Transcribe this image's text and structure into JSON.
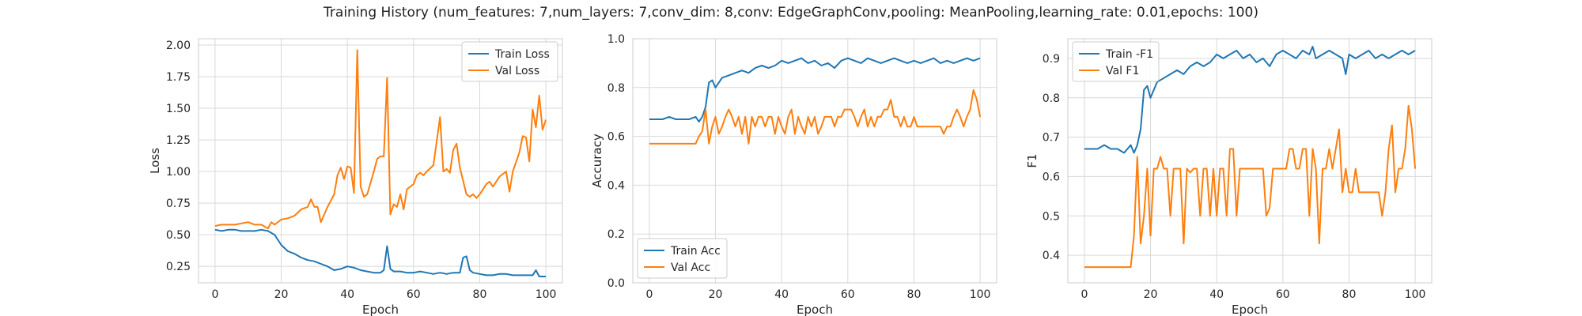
{
  "figure": {
    "title": "Training History (num_features: 7,num_layers: 7,conv_dim: 8,conv: EdgeGraphConv,pooling: MeanPooling,learning_rate: 0.01,epochs: 100)"
  },
  "colors": {
    "series1": "#1f77b4",
    "series2": "#ff7f0e",
    "grid": "#d9d9d9",
    "frame": "#cccccc"
  },
  "chart_data": [
    {
      "type": "line",
      "xlabel": "Epoch",
      "ylabel": "Loss",
      "xlim": [
        -5,
        105
      ],
      "ylim": [
        0.12,
        2.05
      ],
      "xticks": [
        0,
        20,
        40,
        60,
        80,
        100
      ],
      "yticks": [
        0.25,
        0.5,
        0.75,
        1.0,
        1.25,
        1.5,
        1.75,
        2.0
      ],
      "ytick_labels": [
        "0.25",
        "0.50",
        "0.75",
        "1.00",
        "1.25",
        "1.50",
        "1.75",
        "2.00"
      ],
      "grid": true,
      "legend_position": "top-right",
      "series": [
        {
          "name": "Train Loss",
          "color": "#1f77b4",
          "x": [
            0,
            2,
            4,
            6,
            8,
            10,
            12,
            14,
            16,
            18,
            20,
            22,
            24,
            26,
            28,
            30,
            32,
            34,
            36,
            38,
            40,
            42,
            44,
            46,
            48,
            50,
            51,
            52,
            53,
            54,
            56,
            58,
            60,
            62,
            64,
            66,
            68,
            70,
            72,
            74,
            75,
            76,
            77,
            78,
            80,
            82,
            84,
            86,
            88,
            90,
            92,
            94,
            96,
            97,
            98,
            100
          ],
          "y": [
            0.54,
            0.53,
            0.54,
            0.54,
            0.53,
            0.53,
            0.53,
            0.54,
            0.53,
            0.5,
            0.42,
            0.37,
            0.35,
            0.32,
            0.3,
            0.29,
            0.27,
            0.25,
            0.22,
            0.23,
            0.25,
            0.24,
            0.22,
            0.21,
            0.2,
            0.2,
            0.22,
            0.41,
            0.23,
            0.21,
            0.21,
            0.2,
            0.2,
            0.21,
            0.2,
            0.19,
            0.2,
            0.19,
            0.2,
            0.2,
            0.32,
            0.33,
            0.22,
            0.2,
            0.19,
            0.18,
            0.18,
            0.19,
            0.19,
            0.18,
            0.18,
            0.18,
            0.18,
            0.22,
            0.17,
            0.17
          ]
        },
        {
          "name": "Val Loss",
          "color": "#ff7f0e",
          "x": [
            0,
            2,
            4,
            6,
            8,
            10,
            12,
            14,
            16,
            17,
            18,
            20,
            22,
            24,
            26,
            28,
            29,
            30,
            31,
            32,
            34,
            36,
            37,
            38,
            39,
            40,
            41,
            42,
            43,
            44,
            45,
            46,
            48,
            49,
            50,
            51,
            52,
            53,
            54,
            55,
            56,
            57,
            58,
            60,
            61,
            62,
            63,
            64,
            66,
            68,
            69,
            70,
            71,
            72,
            73,
            74,
            76,
            77,
            78,
            79,
            80,
            82,
            83,
            84,
            86,
            88,
            89,
            90,
            92,
            93,
            94,
            95,
            96,
            97,
            98,
            99,
            100
          ],
          "y": [
            0.57,
            0.58,
            0.58,
            0.58,
            0.59,
            0.6,
            0.58,
            0.58,
            0.55,
            0.6,
            0.58,
            0.62,
            0.63,
            0.65,
            0.7,
            0.72,
            0.78,
            0.72,
            0.72,
            0.6,
            0.72,
            0.82,
            0.97,
            1.03,
            0.94,
            1.04,
            1.03,
            0.83,
            1.96,
            0.88,
            0.8,
            0.82,
            1.0,
            1.1,
            1.12,
            1.12,
            1.74,
            0.66,
            0.74,
            0.72,
            0.82,
            0.7,
            0.86,
            0.9,
            0.97,
            0.99,
            0.97,
            1.0,
            1.05,
            1.43,
            1.0,
            1.02,
            0.99,
            1.17,
            1.22,
            1.03,
            0.82,
            0.8,
            0.82,
            0.79,
            0.82,
            0.9,
            0.92,
            0.88,
            0.96,
            1.0,
            0.84,
            1.0,
            1.15,
            1.28,
            1.27,
            1.08,
            1.49,
            1.35,
            1.6,
            1.33,
            1.41
          ]
        }
      ]
    },
    {
      "type": "line",
      "xlabel": "Epoch",
      "ylabel": "Accuracy",
      "xlim": [
        -5,
        105
      ],
      "ylim": [
        0.0,
        1.0
      ],
      "xticks": [
        0,
        20,
        40,
        60,
        80,
        100
      ],
      "yticks": [
        0.0,
        0.2,
        0.4,
        0.6,
        0.8,
        1.0
      ],
      "ytick_labels": [
        "0.0",
        "0.2",
        "0.4",
        "0.6",
        "0.8",
        "1.0"
      ],
      "grid": true,
      "legend_position": "bottom-left",
      "series": [
        {
          "name": "Train Acc",
          "color": "#1f77b4",
          "x": [
            0,
            2,
            4,
            6,
            8,
            10,
            12,
            14,
            15,
            16,
            17,
            18,
            19,
            20,
            22,
            24,
            26,
            28,
            30,
            32,
            34,
            36,
            38,
            40,
            42,
            44,
            46,
            48,
            50,
            52,
            54,
            56,
            58,
            60,
            62,
            64,
            66,
            68,
            70,
            72,
            74,
            76,
            78,
            80,
            82,
            84,
            86,
            88,
            90,
            92,
            94,
            96,
            98,
            100
          ],
          "y": [
            0.67,
            0.67,
            0.67,
            0.68,
            0.67,
            0.67,
            0.67,
            0.68,
            0.66,
            0.68,
            0.72,
            0.82,
            0.83,
            0.8,
            0.84,
            0.85,
            0.86,
            0.87,
            0.86,
            0.88,
            0.89,
            0.88,
            0.89,
            0.91,
            0.9,
            0.91,
            0.92,
            0.9,
            0.91,
            0.89,
            0.9,
            0.88,
            0.91,
            0.92,
            0.91,
            0.9,
            0.92,
            0.91,
            0.9,
            0.91,
            0.92,
            0.91,
            0.9,
            0.91,
            0.9,
            0.91,
            0.92,
            0.9,
            0.91,
            0.9,
            0.91,
            0.92,
            0.91,
            0.92
          ]
        },
        {
          "name": "Val Acc",
          "color": "#ff7f0e",
          "x": [
            0,
            2,
            4,
            6,
            8,
            10,
            12,
            14,
            15,
            16,
            17,
            18,
            19,
            20,
            21,
            22,
            23,
            24,
            25,
            26,
            27,
            28,
            29,
            30,
            31,
            32,
            33,
            34,
            35,
            36,
            37,
            38,
            39,
            40,
            41,
            42,
            43,
            44,
            45,
            46,
            47,
            48,
            49,
            50,
            51,
            52,
            53,
            54,
            55,
            56,
            57,
            58,
            59,
            60,
            61,
            62,
            63,
            64,
            65,
            66,
            67,
            68,
            69,
            70,
            71,
            72,
            73,
            74,
            75,
            76,
            77,
            78,
            79,
            80,
            81,
            82,
            83,
            84,
            85,
            86,
            87,
            88,
            89,
            90,
            91,
            92,
            93,
            94,
            95,
            96,
            97,
            98,
            99,
            100
          ],
          "y": [
            0.57,
            0.57,
            0.57,
            0.57,
            0.57,
            0.57,
            0.57,
            0.57,
            0.6,
            0.62,
            0.71,
            0.57,
            0.64,
            0.68,
            0.61,
            0.64,
            0.68,
            0.71,
            0.68,
            0.64,
            0.68,
            0.61,
            0.68,
            0.57,
            0.68,
            0.64,
            0.68,
            0.68,
            0.64,
            0.68,
            0.68,
            0.61,
            0.68,
            0.64,
            0.61,
            0.68,
            0.71,
            0.61,
            0.68,
            0.64,
            0.61,
            0.68,
            0.64,
            0.68,
            0.61,
            0.64,
            0.68,
            0.68,
            0.68,
            0.64,
            0.68,
            0.68,
            0.71,
            0.71,
            0.71,
            0.68,
            0.64,
            0.68,
            0.71,
            0.64,
            0.68,
            0.64,
            0.68,
            0.68,
            0.71,
            0.71,
            0.75,
            0.68,
            0.68,
            0.64,
            0.68,
            0.64,
            0.64,
            0.68,
            0.64,
            0.64,
            0.64,
            0.64,
            0.64,
            0.64,
            0.64,
            0.64,
            0.61,
            0.64,
            0.64,
            0.68,
            0.71,
            0.68,
            0.64,
            0.68,
            0.71,
            0.79,
            0.75,
            0.68
          ]
        }
      ]
    },
    {
      "type": "line",
      "xlabel": "Epoch",
      "ylabel": "F1",
      "xlim": [
        -5,
        105
      ],
      "ylim": [
        0.33,
        0.95
      ],
      "xticks": [
        0,
        20,
        40,
        60,
        80,
        100
      ],
      "yticks": [
        0.4,
        0.5,
        0.6,
        0.7,
        0.8,
        0.9
      ],
      "ytick_labels": [
        "0.4",
        "0.5",
        "0.6",
        "0.7",
        "0.8",
        "0.9"
      ],
      "grid": true,
      "legend_position": "top-left",
      "series": [
        {
          "name": "Train -F1",
          "color": "#1f77b4",
          "x": [
            0,
            2,
            4,
            6,
            8,
            10,
            12,
            14,
            15,
            16,
            17,
            18,
            19,
            20,
            22,
            24,
            26,
            28,
            30,
            32,
            34,
            36,
            38,
            40,
            42,
            44,
            46,
            48,
            50,
            52,
            54,
            56,
            58,
            60,
            62,
            64,
            66,
            68,
            69,
            70,
            72,
            74,
            76,
            78,
            79,
            80,
            82,
            84,
            86,
            88,
            90,
            92,
            94,
            96,
            98,
            100
          ],
          "y": [
            0.67,
            0.67,
            0.67,
            0.68,
            0.67,
            0.67,
            0.66,
            0.68,
            0.66,
            0.68,
            0.72,
            0.82,
            0.83,
            0.8,
            0.84,
            0.85,
            0.86,
            0.87,
            0.86,
            0.88,
            0.89,
            0.88,
            0.89,
            0.91,
            0.9,
            0.91,
            0.92,
            0.9,
            0.91,
            0.89,
            0.9,
            0.88,
            0.91,
            0.92,
            0.91,
            0.9,
            0.92,
            0.91,
            0.93,
            0.9,
            0.91,
            0.92,
            0.91,
            0.9,
            0.86,
            0.91,
            0.9,
            0.91,
            0.92,
            0.9,
            0.91,
            0.9,
            0.91,
            0.92,
            0.91,
            0.92
          ]
        },
        {
          "name": "Val F1",
          "color": "#ff7f0e",
          "x": [
            0,
            2,
            4,
            6,
            8,
            10,
            12,
            14,
            15,
            16,
            17,
            18,
            19,
            20,
            21,
            22,
            23,
            24,
            25,
            26,
            27,
            28,
            29,
            30,
            31,
            32,
            33,
            34,
            35,
            36,
            37,
            38,
            39,
            40,
            41,
            42,
            43,
            44,
            45,
            46,
            47,
            48,
            49,
            50,
            51,
            52,
            53,
            54,
            55,
            56,
            57,
            58,
            59,
            60,
            61,
            62,
            63,
            64,
            65,
            66,
            67,
            68,
            69,
            70,
            71,
            72,
            73,
            74,
            75,
            76,
            77,
            78,
            79,
            80,
            81,
            82,
            83,
            84,
            85,
            86,
            87,
            88,
            89,
            90,
            91,
            92,
            93,
            94,
            95,
            96,
            97,
            98,
            99,
            100
          ],
          "y": [
            0.37,
            0.37,
            0.37,
            0.37,
            0.37,
            0.37,
            0.37,
            0.37,
            0.45,
            0.65,
            0.43,
            0.5,
            0.62,
            0.45,
            0.62,
            0.62,
            0.65,
            0.62,
            0.62,
            0.5,
            0.62,
            0.62,
            0.62,
            0.43,
            0.62,
            0.61,
            0.62,
            0.62,
            0.5,
            0.62,
            0.62,
            0.5,
            0.62,
            0.5,
            0.62,
            0.62,
            0.5,
            0.67,
            0.67,
            0.5,
            0.62,
            0.62,
            0.62,
            0.62,
            0.62,
            0.62,
            0.62,
            0.62,
            0.5,
            0.52,
            0.62,
            0.62,
            0.62,
            0.62,
            0.62,
            0.67,
            0.67,
            0.62,
            0.62,
            0.67,
            0.67,
            0.5,
            0.67,
            0.62,
            0.43,
            0.62,
            0.62,
            0.67,
            0.62,
            0.67,
            0.72,
            0.56,
            0.62,
            0.56,
            0.56,
            0.62,
            0.56,
            0.56,
            0.56,
            0.56,
            0.56,
            0.56,
            0.56,
            0.5,
            0.56,
            0.67,
            0.73,
            0.56,
            0.62,
            0.62,
            0.67,
            0.78,
            0.72,
            0.62
          ]
        }
      ]
    }
  ]
}
